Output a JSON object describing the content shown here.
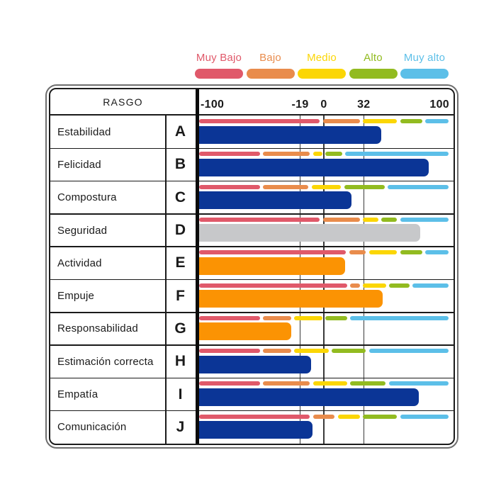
{
  "palette": {
    "muy_bajo": "#E0596A",
    "bajo": "#E98C4C",
    "medio": "#FBD605",
    "alto": "#92BB20",
    "muy_alto": "#5CBFE8",
    "navy": "#0B3596",
    "orange": "#FB9303",
    "gray": "#C7C8CA"
  },
  "legend": {
    "items": [
      {
        "label": "Muy Bajo",
        "color_key": "muy_bajo"
      },
      {
        "label": "Bajo",
        "color_key": "bajo"
      },
      {
        "label": "Medio",
        "color_key": "medio"
      },
      {
        "label": "Alto",
        "color_key": "alto"
      },
      {
        "label": "Muy alto",
        "color_key": "muy_alto"
      }
    ]
  },
  "table": {
    "header_label": "RASGO"
  },
  "chart_data": {
    "type": "bar",
    "title": "",
    "xlabel": "",
    "ylabel": "RASGO",
    "xlim": [
      -100,
      100
    ],
    "grid": true,
    "gridlines": [
      -19,
      0,
      32
    ],
    "legend_position": "top",
    "legend": [
      "Muy Bajo",
      "Bajo",
      "Medio",
      "Alto",
      "Muy alto"
    ],
    "axis_ticks": [
      {
        "label": "-100",
        "value": -100,
        "align": "left"
      },
      {
        "label": "-19",
        "value": -19,
        "align": "center"
      },
      {
        "label": "0",
        "value": 0,
        "align": "center"
      },
      {
        "label": "32",
        "value": 32,
        "align": "center"
      },
      {
        "label": "100",
        "value": 100,
        "align": "right"
      }
    ],
    "rows": [
      {
        "letter": "A",
        "label": "Estabilidad",
        "value": 46,
        "bar_color": "navy",
        "range_cuts": [
          -2,
          30,
          60,
          80
        ]
      },
      {
        "letter": "B",
        "label": "Felicidad",
        "value": 84,
        "bar_color": "navy",
        "range_cuts": [
          -50,
          -10,
          0,
          16
        ]
      },
      {
        "letter": "C",
        "label": "Compostura",
        "value": 22,
        "bar_color": "navy",
        "range_cuts": [
          -50,
          -11,
          15,
          50
        ]
      },
      {
        "letter": "D",
        "label": "Seguridad",
        "value": 77,
        "bar_color": "gray",
        "range_cuts": [
          -2,
          30,
          45,
          60
        ]
      },
      {
        "letter": "E",
        "label": "Actividad",
        "value": 17,
        "bar_color": "orange",
        "range_cuts": [
          19,
          35,
          60,
          80
        ]
      },
      {
        "letter": "F",
        "label": "Empuje",
        "value": 47,
        "bar_color": "orange",
        "range_cuts": [
          20,
          30,
          51,
          70
        ]
      },
      {
        "letter": "G",
        "label": "Responsabilidad",
        "value": -26,
        "bar_color": "orange",
        "range_cuts": [
          -50,
          -25,
          0,
          20
        ]
      },
      {
        "letter": "H",
        "label": "Estimación correcta",
        "value": -10,
        "bar_color": "navy",
        "range_cuts": [
          -50,
          -25,
          5,
          35
        ]
      },
      {
        "letter": "I",
        "label": "Empatía",
        "value": 76,
        "bar_color": "navy",
        "range_cuts": [
          -50,
          -10,
          20,
          51
        ]
      },
      {
        "letter": "J",
        "label": "Comunicación",
        "value": -9,
        "bar_color": "navy",
        "range_cuts": [
          -10,
          10,
          30,
          60
        ]
      }
    ]
  }
}
